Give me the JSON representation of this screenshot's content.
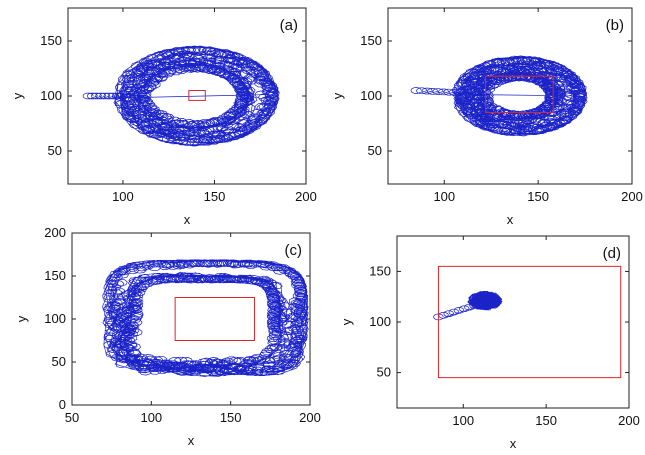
{
  "chart_data": [
    {
      "type": "line",
      "panel_label": "(a)",
      "xlabel": "x",
      "ylabel": "y",
      "xlim": [
        70,
        200
      ],
      "ylim": [
        20,
        180
      ],
      "xticks": [
        "100",
        "150",
        "200"
      ],
      "yticks": [
        "50",
        "100",
        "150"
      ],
      "trajectory": {
        "shape": "annulus",
        "start": [
          81,
          100
        ],
        "inner_radius": 25,
        "outer_radius": 42,
        "center": [
          140,
          100
        ]
      },
      "rectangle": {
        "x": [
          136,
          145
        ],
        "y": [
          96,
          105
        ],
        "color": "#d9262e"
      },
      "trajectory_color": "#1a22c8"
    },
    {
      "type": "line",
      "panel_label": "(b)",
      "xlabel": "x",
      "ylabel": "y",
      "xlim": [
        70,
        200
      ],
      "ylim": [
        20,
        180
      ],
      "xticks": [
        "100",
        "150",
        "200"
      ],
      "yticks": [
        "50",
        "100",
        "150"
      ],
      "trajectory": {
        "shape": "annulus",
        "start": [
          85,
          105
        ],
        "inner_radius": 17,
        "outer_radius": 33,
        "center": [
          140,
          100
        ]
      },
      "rectangle": {
        "x": [
          122,
          158
        ],
        "y": [
          85,
          118
        ],
        "color": "#d9262e"
      },
      "trajectory_color": "#1a22c8"
    },
    {
      "type": "line",
      "panel_label": "(c)",
      "xlabel": "x",
      "ylabel": "y",
      "xlim": [
        50,
        200
      ],
      "ylim": [
        0,
        200
      ],
      "xticks": [
        "50",
        "100",
        "150",
        "200"
      ],
      "yticks": [
        "0",
        "50",
        "100",
        "150",
        "200"
      ],
      "trajectory": {
        "shape": "rounded-square-band",
        "x_range": [
          73,
          195
        ],
        "y_range": [
          35,
          165
        ],
        "band_width": 18
      },
      "rectangle": {
        "x": [
          115,
          165
        ],
        "y": [
          75,
          125
        ],
        "color": "#d9262e"
      },
      "trajectory_color": "#1a22c8"
    },
    {
      "type": "line",
      "panel_label": "(d)",
      "xlabel": "x",
      "ylabel": "y",
      "xlim": [
        60,
        200
      ],
      "ylim": [
        15,
        185
      ],
      "xticks": [
        "100",
        "150",
        "200"
      ],
      "yticks": [
        "50",
        "100",
        "150"
      ],
      "trajectory": {
        "shape": "tight-cluster",
        "start": [
          85,
          105
        ],
        "center": [
          113,
          121
        ],
        "radius": 8
      },
      "rectangle": {
        "x": [
          85,
          195
        ],
        "y": [
          45,
          155
        ],
        "color": "#d9262e"
      },
      "trajectory_color": "#1a22c8"
    }
  ]
}
